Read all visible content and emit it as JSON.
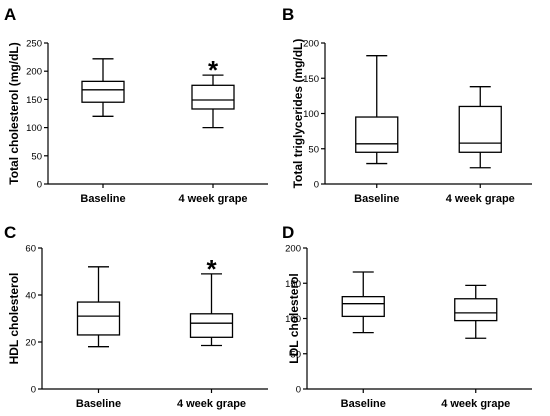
{
  "chart_data": [
    {
      "type": "boxplot",
      "panel": "A",
      "ylabel": "Total cholesterol (mg/dL)",
      "ylim": [
        0,
        250
      ],
      "yticks": [
        0,
        50,
        100,
        150,
        200,
        250
      ],
      "categories": [
        "Baseline",
        "4 week grape"
      ],
      "boxes": [
        {
          "min": 120,
          "q1": 145,
          "median": 167,
          "q3": 182,
          "max": 222
        },
        {
          "min": 100,
          "q1": 133,
          "median": 149,
          "q3": 175,
          "max": 193
        }
      ],
      "annotations": [
        {
          "category": "4 week grape",
          "text": "*"
        }
      ]
    },
    {
      "type": "boxplot",
      "panel": "B",
      "ylabel": "Total triglycerides (mg/dL)",
      "ylim": [
        0,
        200
      ],
      "yticks": [
        0,
        50,
        100,
        150,
        200
      ],
      "categories": [
        "Baseline",
        "4 week grape"
      ],
      "boxes": [
        {
          "min": 29,
          "q1": 45,
          "median": 57,
          "q3": 95,
          "max": 182
        },
        {
          "min": 23,
          "q1": 45,
          "median": 58,
          "q3": 110,
          "max": 138
        }
      ],
      "annotations": []
    },
    {
      "type": "boxplot",
      "panel": "C",
      "ylabel": "HDL cholesterol",
      "ylim": [
        0,
        60
      ],
      "yticks": [
        0,
        20,
        40,
        60
      ],
      "categories": [
        "Baseline",
        "4 week grape"
      ],
      "boxes": [
        {
          "min": 18,
          "q1": 23,
          "median": 31,
          "q3": 37,
          "max": 52
        },
        {
          "min": 18.5,
          "q1": 22,
          "median": 28,
          "q3": 32,
          "max": 49
        }
      ],
      "annotations": [
        {
          "category": "4 week grape",
          "text": "*"
        }
      ]
    },
    {
      "type": "boxplot",
      "panel": "D",
      "ylabel": "LDL cholesterol",
      "ylim": [
        0,
        200
      ],
      "yticks": [
        0,
        50,
        100,
        150,
        200
      ],
      "categories": [
        "Baseline",
        "4 week grape"
      ],
      "boxes": [
        {
          "min": 80,
          "q1": 103,
          "median": 121,
          "q3": 131,
          "max": 166
        },
        {
          "min": 72,
          "q1": 97,
          "median": 108,
          "q3": 128,
          "max": 147
        }
      ],
      "annotations": []
    }
  ]
}
